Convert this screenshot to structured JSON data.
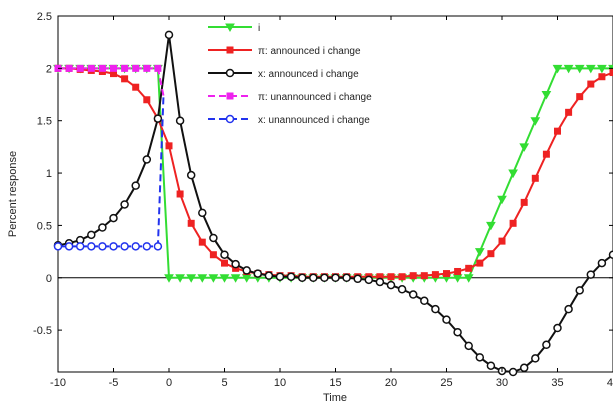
{
  "chart_data": {
    "type": "line",
    "xlabel": "Time",
    "ylabel": "Percent response",
    "xlim": [
      -10,
      40
    ],
    "ylim": [
      -0.9,
      2.5
    ],
    "xticks": [
      -10,
      -5,
      0,
      5,
      10,
      15,
      20,
      25,
      30,
      35,
      40
    ],
    "yticks": [
      -0.5,
      0,
      0.5,
      1,
      1.5,
      2,
      2.5
    ],
    "xtick_labels": [
      "-10",
      "-5",
      "0",
      "5",
      "10",
      "15",
      "20",
      "25",
      "30",
      "35",
      "40"
    ],
    "ytick_labels": [
      "-0.5",
      "0",
      "0.5",
      "1",
      "1.5",
      "2",
      "2.5"
    ],
    "grid": false,
    "zero_line": true,
    "legend_position": "top-center",
    "series": [
      {
        "name": "i",
        "color": "#33dd33",
        "marker": "triangle-down",
        "dash": false,
        "x": [
          -10,
          -9,
          -8,
          -7,
          -6,
          -5,
          -4,
          -3,
          -2,
          -1,
          0,
          1,
          2,
          3,
          4,
          5,
          6,
          7,
          8,
          9,
          10,
          11,
          12,
          13,
          14,
          15,
          16,
          17,
          18,
          19,
          20,
          21,
          22,
          23,
          24,
          25,
          26,
          27,
          28,
          29,
          30,
          31,
          32,
          33,
          34,
          35,
          36,
          37,
          38,
          39,
          40
        ],
        "y": [
          2,
          2,
          2,
          2,
          2,
          2,
          2,
          2,
          2,
          2,
          0,
          0,
          0,
          0,
          0,
          0,
          0,
          0,
          0,
          0,
          0,
          0,
          0,
          0,
          0,
          0,
          0,
          0,
          0,
          0,
          0,
          0,
          0,
          0,
          0,
          0,
          0,
          0,
          0.25,
          0.5,
          0.75,
          1.0,
          1.25,
          1.5,
          1.75,
          2,
          2,
          2,
          2,
          2,
          2
        ]
      },
      {
        "name": "π: announced i change",
        "color": "#ee2222",
        "marker": "square",
        "dash": false,
        "x": [
          -10,
          -9,
          -8,
          -7,
          -6,
          -5,
          -4,
          -3,
          -2,
          -1,
          0,
          1,
          2,
          3,
          4,
          5,
          6,
          7,
          8,
          9,
          10,
          11,
          12,
          13,
          14,
          15,
          16,
          17,
          18,
          19,
          20,
          21,
          22,
          23,
          24,
          25,
          26,
          27,
          28,
          29,
          30,
          31,
          32,
          33,
          34,
          35,
          36,
          37,
          38,
          39,
          40
        ],
        "y": [
          2.0,
          2.0,
          1.99,
          1.98,
          1.97,
          1.95,
          1.9,
          1.82,
          1.7,
          1.52,
          1.26,
          0.8,
          0.52,
          0.34,
          0.22,
          0.14,
          0.09,
          0.06,
          0.04,
          0.03,
          0.02,
          0.02,
          0.01,
          0.01,
          0.01,
          0.01,
          0.01,
          0.01,
          0.01,
          0.01,
          0.01,
          0.01,
          0.02,
          0.02,
          0.03,
          0.04,
          0.06,
          0.09,
          0.14,
          0.23,
          0.35,
          0.52,
          0.72,
          0.95,
          1.18,
          1.4,
          1.58,
          1.73,
          1.85,
          1.92,
          1.96
        ]
      },
      {
        "name": "x: announced i change",
        "color": "#111111",
        "marker": "circle",
        "dash": false,
        "x": [
          -10,
          -9,
          -8,
          -7,
          -6,
          -5,
          -4,
          -3,
          -2,
          -1,
          0,
          1,
          2,
          3,
          4,
          5,
          6,
          7,
          8,
          9,
          10,
          11,
          12,
          13,
          14,
          15,
          16,
          17,
          18,
          19,
          20,
          21,
          22,
          23,
          24,
          25,
          26,
          27,
          28,
          29,
          30,
          31,
          32,
          33,
          34,
          35,
          36,
          37,
          38,
          39,
          40
        ],
        "y": [
          0.31,
          0.33,
          0.36,
          0.41,
          0.48,
          0.57,
          0.7,
          0.88,
          1.13,
          1.52,
          2.32,
          1.5,
          0.98,
          0.62,
          0.38,
          0.22,
          0.13,
          0.07,
          0.04,
          0.02,
          0.01,
          0.01,
          0.0,
          0.0,
          0.0,
          0.0,
          0.0,
          -0.01,
          -0.02,
          -0.04,
          -0.07,
          -0.11,
          -0.16,
          -0.22,
          -0.3,
          -0.4,
          -0.52,
          -0.65,
          -0.76,
          -0.84,
          -0.89,
          -0.9,
          -0.86,
          -0.77,
          -0.64,
          -0.48,
          -0.3,
          -0.12,
          0.03,
          0.14,
          0.22
        ]
      },
      {
        "name": "π: unannounced i change",
        "color": "#ee22ee",
        "marker": "square",
        "dash": true,
        "x": [
          -10,
          -9,
          -8,
          -7,
          -6,
          -5,
          -4,
          -3,
          -2,
          -1,
          -0.5
        ],
        "y": [
          2,
          2,
          2,
          2,
          2,
          2,
          2,
          2,
          2,
          2,
          1.74
        ]
      },
      {
        "name": "x: unannounced i change",
        "color": "#2233ee",
        "marker": "circle-open",
        "dash": true,
        "x": [
          -10,
          -9,
          -8,
          -7,
          -6,
          -5,
          -4,
          -3,
          -2,
          -1,
          -0.5
        ],
        "y": [
          0.3,
          0.3,
          0.3,
          0.3,
          0.3,
          0.3,
          0.3,
          0.3,
          0.3,
          0.3,
          1.73
        ]
      }
    ]
  }
}
